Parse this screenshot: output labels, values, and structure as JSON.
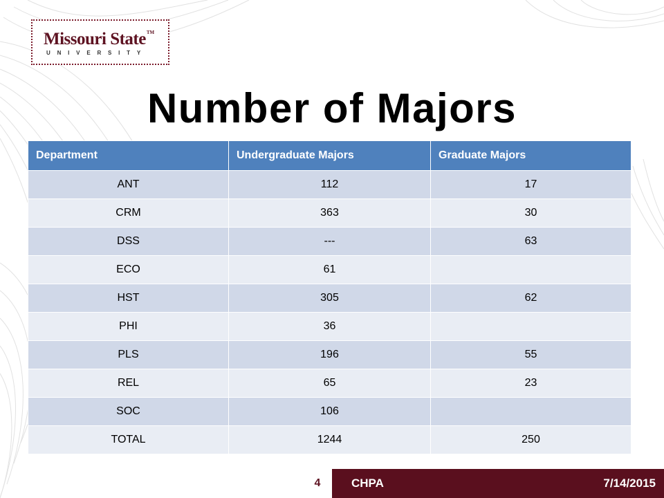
{
  "logo": {
    "main": "Missouri State",
    "tm": "TM",
    "sub": "UNIVERSITY"
  },
  "title": "Number of Majors",
  "table": {
    "headers": [
      "Department",
      "Undergraduate Majors",
      "Graduate Majors"
    ],
    "rows": [
      [
        "ANT",
        "112",
        "17"
      ],
      [
        "CRM",
        "363",
        "30"
      ],
      [
        "DSS",
        "---",
        "63"
      ],
      [
        "ECO",
        "61",
        ""
      ],
      [
        "HST",
        "305",
        "62"
      ],
      [
        "PHI",
        "36",
        ""
      ],
      [
        "PLS",
        "196",
        "55"
      ],
      [
        "REL",
        "65",
        "23"
      ],
      [
        "SOC",
        "106",
        ""
      ],
      [
        "TOTAL",
        "1244",
        "250"
      ]
    ]
  },
  "footer": {
    "page_number": "4",
    "label": "CHPA",
    "date": "7/14/2015"
  },
  "colors": {
    "header_bg": "#4f81bd",
    "row_dark": "#d0d8e8",
    "row_light": "#e9edf4",
    "brand_maroon": "#5a0f1e"
  }
}
